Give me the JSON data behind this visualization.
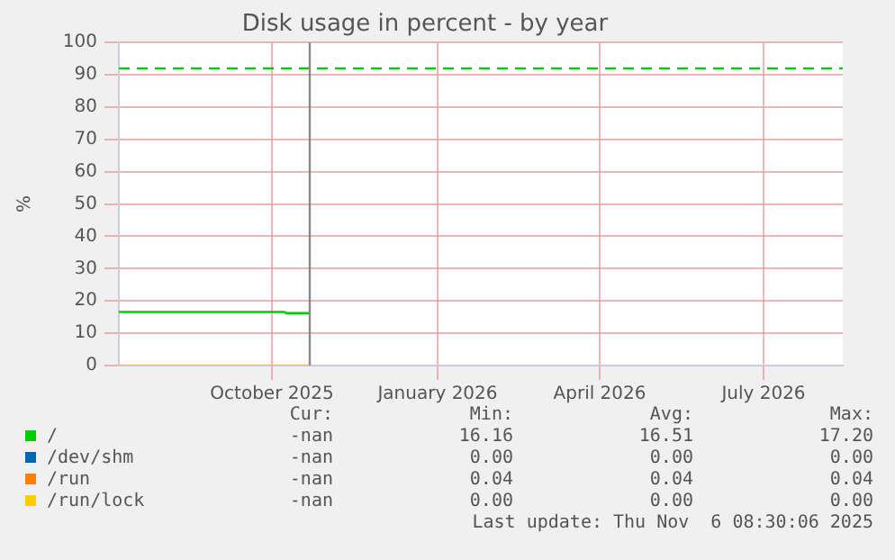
{
  "chart_data": {
    "type": "line",
    "title": "Disk usage in percent - by year",
    "ylabel": "%",
    "xlim": [
      "2025-07-23",
      "2026-08-29"
    ],
    "xticks": [
      {
        "value": "2025-10-16",
        "label": "October 2025"
      },
      {
        "value": "2026-01-16",
        "label": "January 2026"
      },
      {
        "value": "2026-04-16",
        "label": "April 2026"
      },
      {
        "value": "2026-07-16",
        "label": "July 2026"
      }
    ],
    "ylim": [
      0,
      100
    ],
    "yticks": [
      0,
      10,
      20,
      30,
      40,
      50,
      60,
      70,
      80,
      90,
      100
    ],
    "grid": true,
    "legend": "bottom",
    "marker": "none",
    "line_style": "solid",
    "series": [
      {
        "name": "/",
        "color": "#00cc00",
        "x": [
          "2025-07-23",
          "2025-10-23",
          "2025-10-24",
          "2025-11-06"
        ],
        "values": [
          16.6,
          16.6,
          16.2,
          16.2
        ]
      },
      {
        "name": "/dev/shm",
        "color": "#0066b3",
        "values": [
          null,
          null
        ]
      },
      {
        "name": "/run",
        "color": "#ff8000",
        "values": [
          null,
          null
        ]
      },
      {
        "name": "/run/lock",
        "color": "#ffcc00",
        "x": [
          "2025-07-23",
          "2025-11-06"
        ],
        "values": [
          0,
          0
        ]
      }
    ],
    "ref_lines": [
      {
        "axis": "y",
        "value": 92,
        "color": "#00cc00",
        "line_style": "dashed"
      },
      {
        "axis": "x",
        "value": "2025-11-06",
        "color": "#888888",
        "line_style": "solid"
      }
    ],
    "annotations": [
      "Cur:",
      "Min:",
      "Avg:",
      "Max:",
      "-nan",
      "16.16",
      "16.51",
      "17.20",
      "-nan",
      "0.00",
      "0.00",
      "0.00",
      "-nan",
      "0.04",
      "0.04",
      "0.04",
      "-nan",
      "0.00",
      "0.00",
      "0.00",
      "Last update: Thu Nov  6 08:30:06 2025"
    ]
  }
}
